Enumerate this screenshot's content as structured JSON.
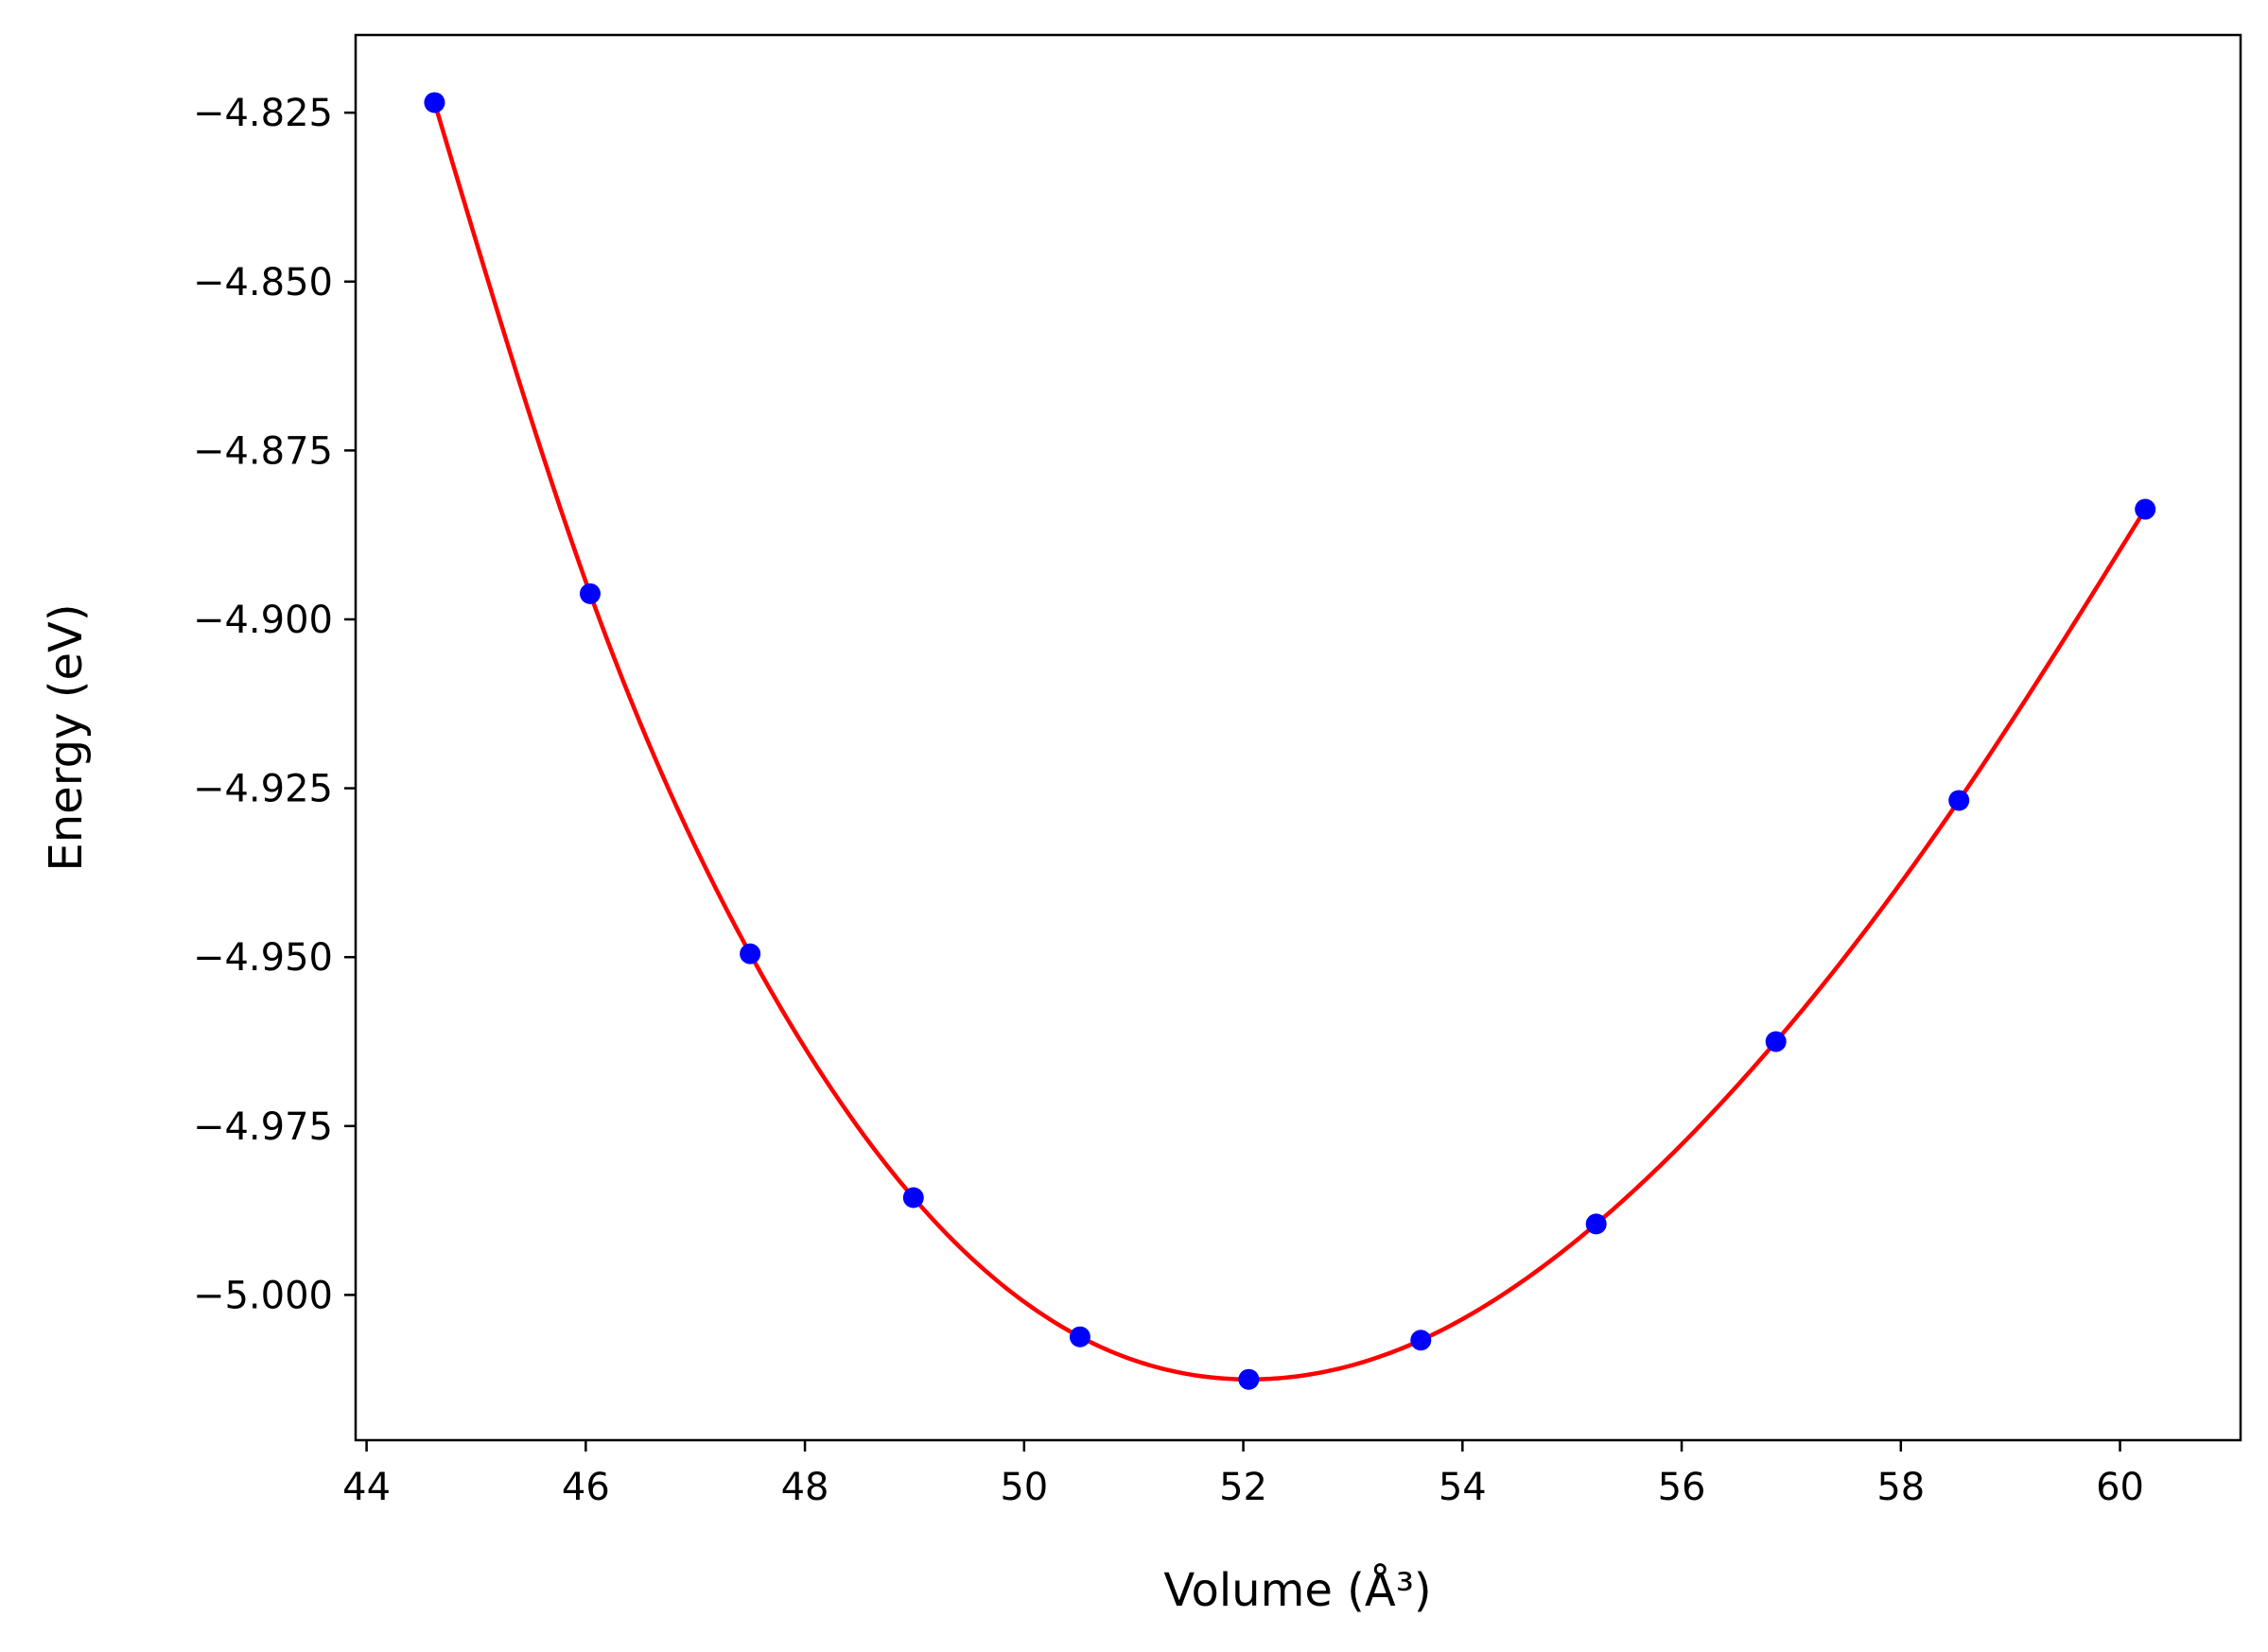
{
  "chart_data": {
    "type": "scatter",
    "xlabel": "Volume (Å³)",
    "ylabel": "Energy (eV)",
    "xlim": [
      43.9,
      61.1
    ],
    "ylim": [
      -5.0215,
      -4.8135
    ],
    "x_ticks": [
      44,
      46,
      48,
      50,
      52,
      54,
      56,
      58,
      60
    ],
    "y_ticks": [
      -5.0,
      -4.975,
      -4.95,
      -4.925,
      -4.9,
      -4.875,
      -4.85,
      -4.825
    ],
    "x_tick_labels": [
      "44",
      "46",
      "48",
      "50",
      "52",
      "54",
      "56",
      "58",
      "60"
    ],
    "y_tick_labels": [
      "−5.000",
      "−4.975",
      "−4.950",
      "−4.925",
      "−4.900",
      "−4.875",
      "−4.850",
      "−4.825"
    ],
    "grid": false,
    "series": [
      {
        "type": "scatter",
        "color": "#0000ff",
        "x": [
          44.62,
          46.04,
          47.5,
          48.99,
          50.51,
          52.05,
          53.62,
          55.22,
          56.86,
          58.53,
          60.23
        ],
        "y": [
          -4.8235,
          -4.8962,
          -4.9495,
          -4.9856,
          -5.0062,
          -5.0125,
          -5.0067,
          -4.9895,
          -4.9625,
          -4.9268,
          -4.8837
        ]
      },
      {
        "type": "line",
        "color": "#ff0000",
        "fit": "cubic-spline through data points"
      }
    ]
  }
}
